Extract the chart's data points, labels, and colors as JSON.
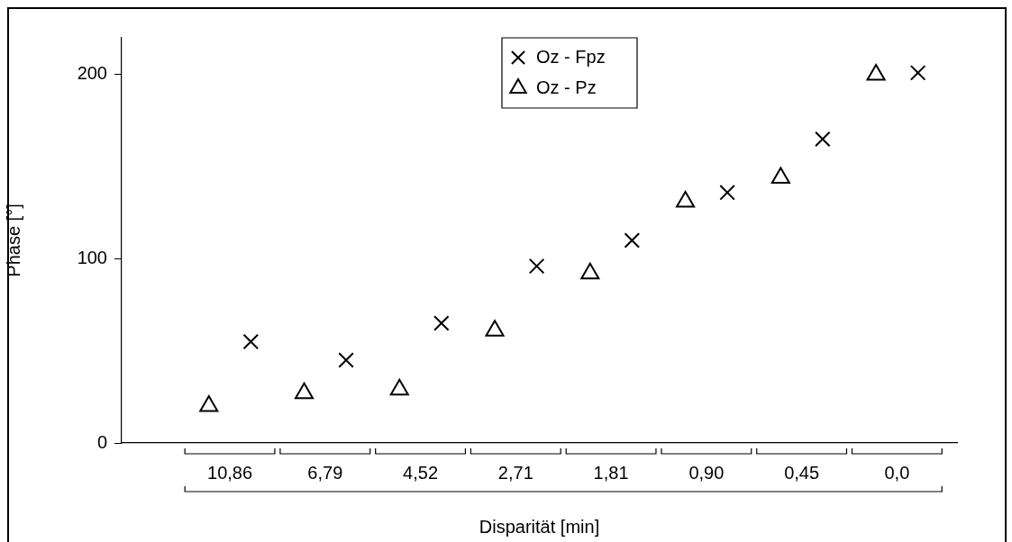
{
  "chart_data": {
    "type": "scatter",
    "xlabel": "Disparität [min]",
    "ylabel": "Phase [°]",
    "categories": [
      "10,86",
      "6,79",
      "4,52",
      "2,71",
      "1,81",
      "0,90",
      "0,45",
      "0,0"
    ],
    "series": [
      {
        "name": "Oz - Fpz",
        "color": "#000000",
        "marker": "cross",
        "values": [
          55,
          45,
          65,
          96,
          110,
          136,
          165,
          201
        ]
      },
      {
        "name": "Oz - Pz",
        "color": "#000000",
        "marker": "triangle",
        "values": [
          20,
          27,
          29,
          61,
          92,
          131,
          144,
          200
        ]
      }
    ],
    "ylim": [
      0,
      220
    ],
    "yticks": [
      0,
      100,
      200
    ],
    "grid": false,
    "legend": "top"
  }
}
